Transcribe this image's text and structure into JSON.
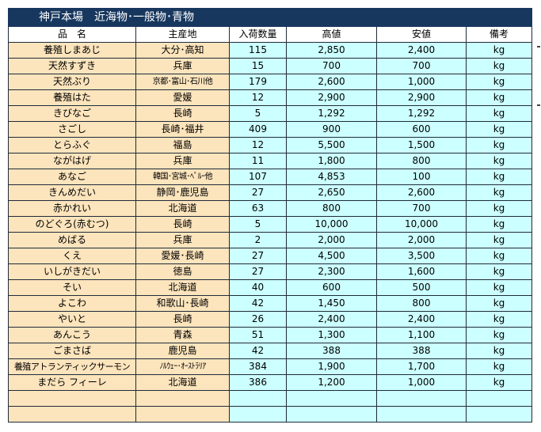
{
  "title": "神戸本場　近海物･一般物･青物",
  "columns": {
    "name": "品　名",
    "origin": "主産地",
    "quantity": "入荷数量",
    "high": "高値",
    "low": "安値",
    "note": "備考"
  },
  "rows": [
    {
      "name": "養殖しまあじ",
      "origin": "大分･高知",
      "qty": "115",
      "high": "2,850",
      "low": "2,400",
      "unit": "kg"
    },
    {
      "name": "天然すずき",
      "origin": "兵庫",
      "qty": "15",
      "high": "700",
      "low": "700",
      "unit": "kg"
    },
    {
      "name": "天然ぶり",
      "origin": "京都･富山･石川他",
      "qty": "179",
      "high": "2,600",
      "low": "1,000",
      "unit": "kg"
    },
    {
      "name": "養殖はた",
      "origin": "愛媛",
      "qty": "12",
      "high": "2,900",
      "low": "2,900",
      "unit": "kg"
    },
    {
      "name": "きびなご",
      "origin": "長崎",
      "qty": "5",
      "high": "1,292",
      "low": "1,292",
      "unit": "kg"
    },
    {
      "name": "さごし",
      "origin": "長崎･福井",
      "qty": "409",
      "high": "900",
      "low": "600",
      "unit": "kg"
    },
    {
      "name": "とらふぐ",
      "origin": "福島",
      "qty": "12",
      "high": "5,500",
      "low": "1,500",
      "unit": "kg"
    },
    {
      "name": "ながはげ",
      "origin": "兵庫",
      "qty": "11",
      "high": "1,800",
      "low": "800",
      "unit": "kg"
    },
    {
      "name": "あなご",
      "origin": "韓国･宮城･ﾍﾟﾙｰ他",
      "qty": "107",
      "high": "4,853",
      "low": "100",
      "unit": "kg"
    },
    {
      "name": "きんめだい",
      "origin": "静岡･鹿児島",
      "qty": "27",
      "high": "2,650",
      "low": "2,600",
      "unit": "kg"
    },
    {
      "name": "赤かれい",
      "origin": "北海道",
      "qty": "63",
      "high": "800",
      "low": "700",
      "unit": "kg"
    },
    {
      "name": "のどぐろ(赤むつ)",
      "origin": "長崎",
      "qty": "5",
      "high": "10,000",
      "low": "10,000",
      "unit": "kg"
    },
    {
      "name": "めばる",
      "origin": "兵庫",
      "qty": "2",
      "high": "2,000",
      "low": "2,000",
      "unit": "kg"
    },
    {
      "name": "くえ",
      "origin": "愛媛･長崎",
      "qty": "27",
      "high": "4,500",
      "low": "3,500",
      "unit": "kg"
    },
    {
      "name": "いしがきだい",
      "origin": "徳島",
      "qty": "27",
      "high": "2,300",
      "low": "1,600",
      "unit": "kg"
    },
    {
      "name": "そい",
      "origin": "北海道",
      "qty": "40",
      "high": "600",
      "low": "500",
      "unit": "kg"
    },
    {
      "name": "よこわ",
      "origin": "和歌山･長崎",
      "qty": "42",
      "high": "1,450",
      "low": "800",
      "unit": "kg"
    },
    {
      "name": "やいと",
      "origin": "長崎",
      "qty": "26",
      "high": "2,400",
      "low": "2,400",
      "unit": "kg"
    },
    {
      "name": "あんこう",
      "origin": "青森",
      "qty": "51",
      "high": "1,300",
      "low": "1,100",
      "unit": "kg"
    },
    {
      "name": "ごまさば",
      "origin": "鹿児島",
      "qty": "42",
      "high": "388",
      "low": "388",
      "unit": "kg"
    },
    {
      "name": "養殖アトランティックサーモン",
      "origin": "ﾉﾙｳｪｰ･ｵｰｽﾄﾗﾘｱ",
      "qty": "384",
      "high": "1,900",
      "low": "1,700",
      "unit": "kg"
    },
    {
      "name": "まだら フィーレ",
      "origin": "北海道",
      "qty": "386",
      "high": "1,200",
      "low": "1,000",
      "unit": "kg"
    }
  ]
}
